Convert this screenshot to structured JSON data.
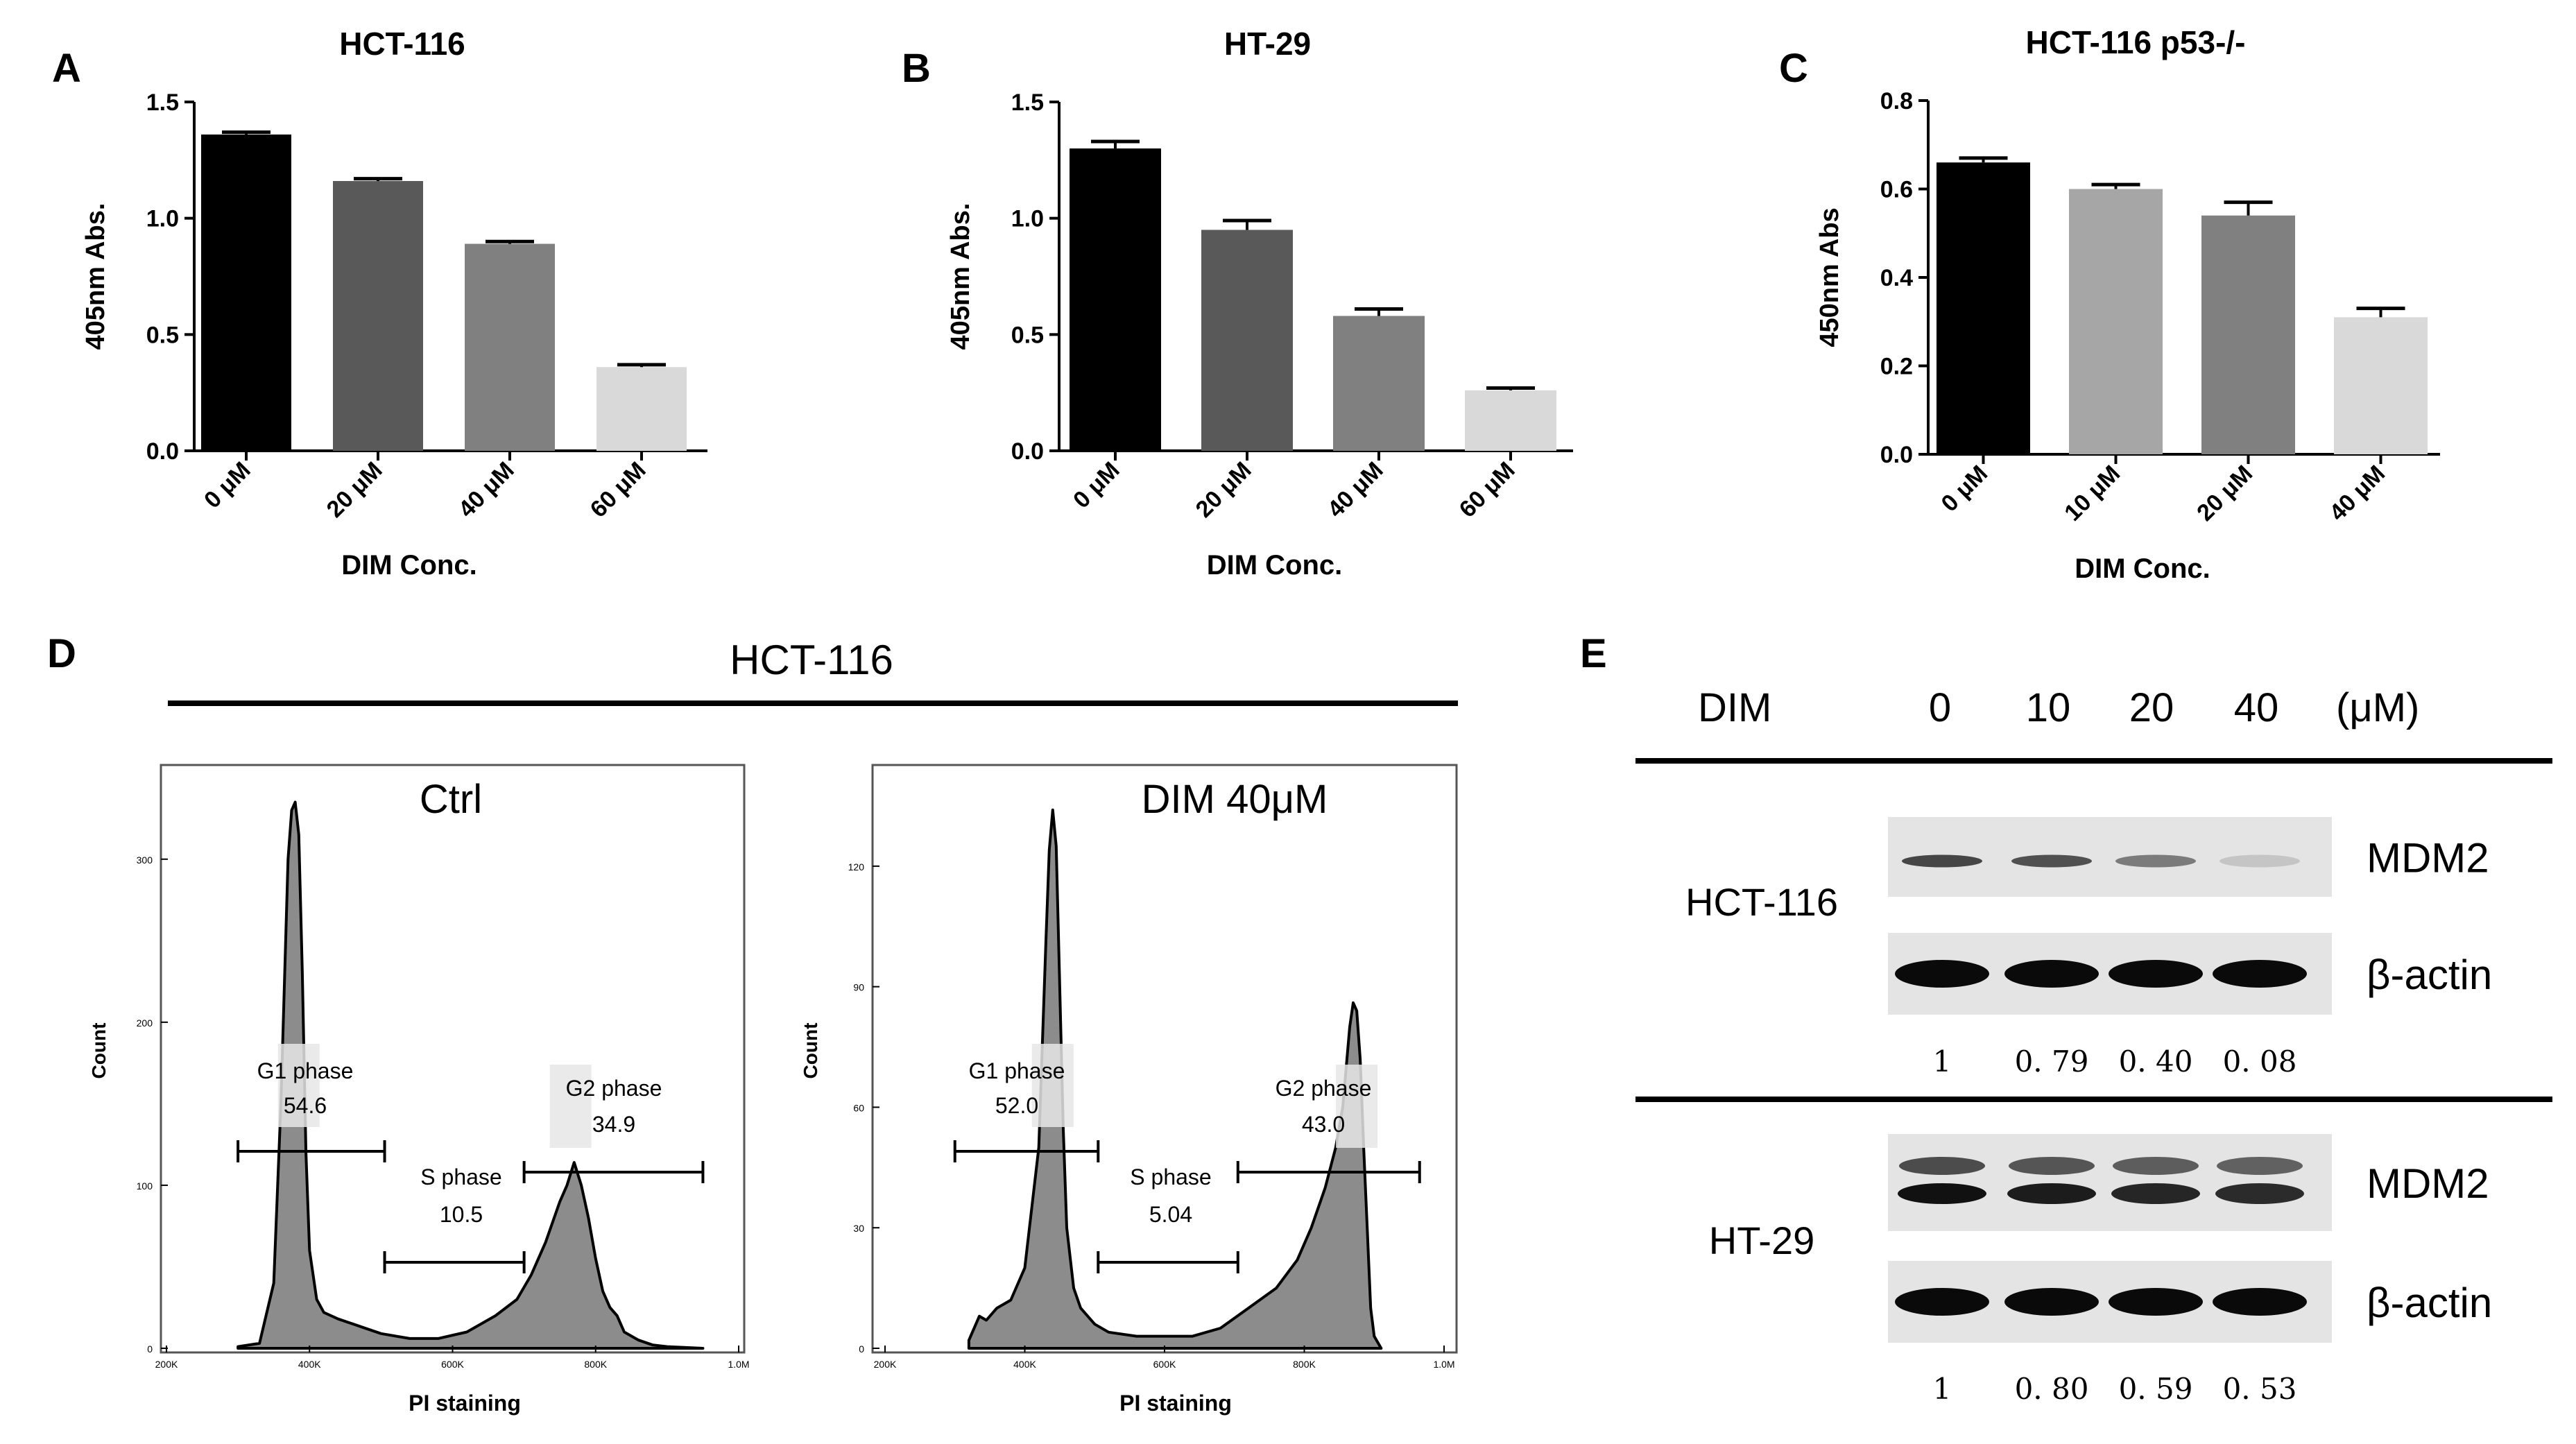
{
  "panels": {
    "A": {
      "letter": "A"
    },
    "B": {
      "letter": "B"
    },
    "C": {
      "letter": "C"
    },
    "D": {
      "letter": "D",
      "title": "HCT-116"
    },
    "E": {
      "letter": "E"
    }
  },
  "chart_data": [
    {
      "id": "A",
      "type": "bar",
      "title": "HCT-116",
      "xlabel": "DIM Conc.",
      "ylabel": "405nm Abs.",
      "ylim": [
        0,
        1.5
      ],
      "yticks": [
        "0.0",
        "0.5",
        "1.0",
        "1.5"
      ],
      "ytick_values": [
        0,
        0.5,
        1.0,
        1.5
      ],
      "categories": [
        "0 μM",
        "20 μM",
        "40 μM",
        "60 μM"
      ],
      "values": [
        1.36,
        1.16,
        0.89,
        0.36
      ],
      "errors": [
        0.01,
        0.01,
        0.01,
        0.01
      ],
      "colors": [
        "#000000",
        "#595959",
        "#808080",
        "#d9d9d9"
      ]
    },
    {
      "id": "B",
      "type": "bar",
      "title": "HT-29",
      "xlabel": "DIM Conc.",
      "ylabel": "405nm Abs.",
      "ylim": [
        0,
        1.5
      ],
      "yticks": [
        "0.0",
        "0.5",
        "1.0",
        "1.5"
      ],
      "ytick_values": [
        0,
        0.5,
        1.0,
        1.5
      ],
      "categories": [
        "0 μM",
        "20 μM",
        "40 μM",
        "60 μM"
      ],
      "values": [
        1.3,
        0.95,
        0.58,
        0.26
      ],
      "errors": [
        0.03,
        0.04,
        0.03,
        0.01
      ],
      "colors": [
        "#000000",
        "#595959",
        "#808080",
        "#d9d9d9"
      ]
    },
    {
      "id": "C",
      "type": "bar",
      "title": "HCT-116 p53-/-",
      "xlabel": "DIM Conc.",
      "ylabel": "450nm Abs",
      "ylim": [
        0,
        0.8
      ],
      "yticks": [
        "0.0",
        "0.2",
        "0.4",
        "0.6",
        "0.8"
      ],
      "ytick_values": [
        0,
        0.2,
        0.4,
        0.6,
        0.8
      ],
      "categories": [
        "0 μM",
        "10 μM",
        "20 μM",
        "40 μM"
      ],
      "values": [
        0.66,
        0.6,
        0.54,
        0.31
      ],
      "errors": [
        0.01,
        0.01,
        0.03,
        0.02
      ],
      "colors": [
        "#000000",
        "#a6a6a6",
        "#808080",
        "#d9d9d9"
      ]
    },
    {
      "id": "D1",
      "type": "area",
      "title": "Ctrl",
      "xlabel": "PI staining",
      "ylabel": "Count",
      "xticks": [
        "200K",
        "400K",
        "600K",
        "800K",
        "1.0M"
      ],
      "xtick_values": [
        200,
        400,
        600,
        800,
        1000
      ],
      "yticks": [
        "0",
        "100",
        "200",
        "300"
      ],
      "ytick_values": [
        0,
        100,
        200,
        300
      ],
      "xlim": [
        200,
        1000
      ],
      "ylim": [
        0,
        345
      ],
      "x": [
        300,
        330,
        350,
        360,
        370,
        375,
        380,
        385,
        390,
        395,
        400,
        410,
        420,
        440,
        460,
        480,
        500,
        540,
        580,
        620,
        660,
        690,
        710,
        730,
        750,
        760,
        770,
        780,
        790,
        800,
        810,
        820,
        830,
        840,
        860,
        880,
        900,
        950
      ],
      "y": [
        1,
        3,
        40,
        150,
        300,
        330,
        335,
        315,
        230,
        120,
        60,
        30,
        22,
        18,
        15,
        12,
        9,
        6,
        6,
        10,
        20,
        30,
        45,
        65,
        90,
        100,
        114,
        100,
        80,
        55,
        35,
        25,
        20,
        10,
        5,
        2,
        1,
        0
      ],
      "gates": [
        {
          "name": "G1 phase",
          "value": "54.6",
          "range": [
            300,
            505
          ]
        },
        {
          "name": "S phase",
          "value": "10.5",
          "range": [
            505,
            700
          ]
        },
        {
          "name": "G2 phase",
          "value": "34.9",
          "range": [
            700,
            950
          ]
        }
      ]
    },
    {
      "id": "D2",
      "type": "area",
      "title": "DIM 40μM",
      "xlabel": "PI staining",
      "ylabel": "Count",
      "xticks": [
        "200K",
        "400K",
        "600K",
        "800K",
        "1.0M"
      ],
      "xtick_values": [
        200,
        400,
        600,
        800,
        1000
      ],
      "yticks": [
        "0",
        "30",
        "60",
        "90",
        "120"
      ],
      "ytick_values": [
        0,
        30,
        60,
        90,
        120
      ],
      "xlim": [
        200,
        1000
      ],
      "ylim": [
        0,
        140
      ],
      "x": [
        320,
        335,
        345,
        360,
        380,
        400,
        420,
        430,
        435,
        440,
        445,
        450,
        455,
        460,
        470,
        480,
        500,
        520,
        560,
        600,
        640,
        680,
        720,
        760,
        790,
        810,
        830,
        845,
        855,
        865,
        870,
        875,
        880,
        885,
        890,
        895,
        900,
        910
      ],
      "y": [
        2,
        8,
        7,
        10,
        12,
        20,
        50,
        100,
        124,
        134,
        125,
        90,
        55,
        30,
        15,
        10,
        6,
        4,
        3,
        3,
        3,
        5,
        10,
        15,
        22,
        30,
        40,
        50,
        60,
        80,
        86,
        84,
        72,
        50,
        30,
        10,
        3,
        0
      ],
      "gates": [
        {
          "name": "G1 phase",
          "value": "52.0",
          "range": [
            300,
            505
          ]
        },
        {
          "name": "S phase",
          "value": "5.04",
          "range": [
            505,
            705
          ]
        },
        {
          "name": "G2 phase",
          "value": "43.0",
          "range": [
            705,
            965
          ]
        }
      ]
    }
  ],
  "blot": {
    "header": {
      "label": "DIM",
      "doses": [
        "0",
        "10",
        "20",
        "40"
      ],
      "unit": "(μM)"
    },
    "groups": [
      {
        "cell_line": "HCT-116",
        "rows": [
          {
            "label": "MDM2",
            "intensity": [
              0.75,
              0.7,
              0.5,
              0.15
            ],
            "double": false
          },
          {
            "label": "β-actin",
            "intensity": [
              1,
              1,
              1,
              1
            ],
            "double": false
          }
        ],
        "quant": [
          "1",
          "0. 79",
          "0. 40",
          "0. 08"
        ]
      },
      {
        "cell_line": "HT-29",
        "rows": [
          {
            "label": "MDM2",
            "intensity": [
              0.9,
              0.85,
              0.8,
              0.78
            ],
            "double": true
          },
          {
            "label": "β-actin",
            "intensity": [
              1,
              1,
              1,
              1
            ],
            "double": false
          }
        ],
        "quant": [
          "1",
          "0. 80",
          "0. 59",
          "0. 53"
        ]
      }
    ]
  },
  "colors": {
    "red_label": "#e02020",
    "histogram_fill": "#8c8c8c",
    "gate_highlight": "#e6e6e6"
  }
}
